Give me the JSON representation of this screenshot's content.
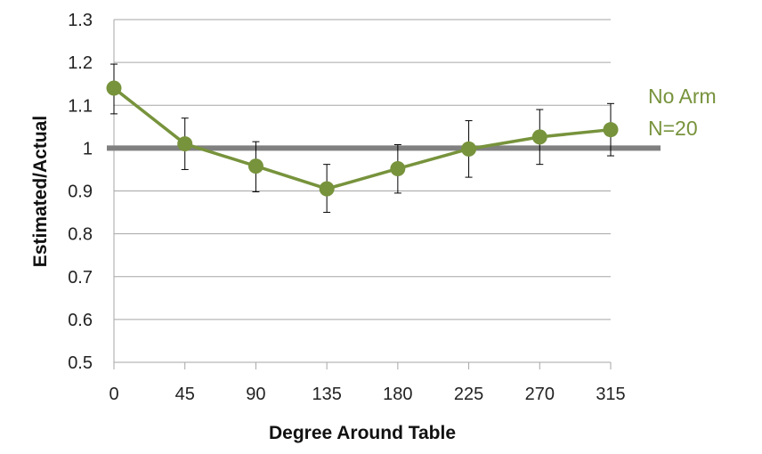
{
  "chart_data": {
    "type": "line",
    "xlabel": "Degree Around Table",
    "ylabel": "Estimated/Actual",
    "x": [
      0,
      45,
      90,
      135,
      180,
      225,
      270,
      315
    ],
    "ylim": [
      0.5,
      1.3
    ],
    "yticks": [
      "0.5",
      "0.6",
      "0.7",
      "0.8",
      "0.9",
      "1",
      "1.1",
      "1.2",
      "1.3"
    ],
    "grid": "horizontal",
    "reference_line": {
      "y": 1.0,
      "color": "#808080"
    },
    "series": [
      {
        "values": [
          1.14,
          1.01,
          0.958,
          0.905,
          0.952,
          0.998,
          1.026,
          1.043
        ],
        "error_low": [
          1.08,
          0.95,
          0.898,
          0.85,
          0.895,
          0.932,
          0.962,
          0.982
        ],
        "error_high": [
          1.196,
          1.07,
          1.015,
          0.962,
          1.008,
          1.064,
          1.09,
          1.104
        ],
        "color": "#77933C"
      }
    ],
    "legend": {
      "placement": "right",
      "lines": [
        "No Arm",
        "N=20"
      ],
      "color": "#77933C"
    }
  }
}
